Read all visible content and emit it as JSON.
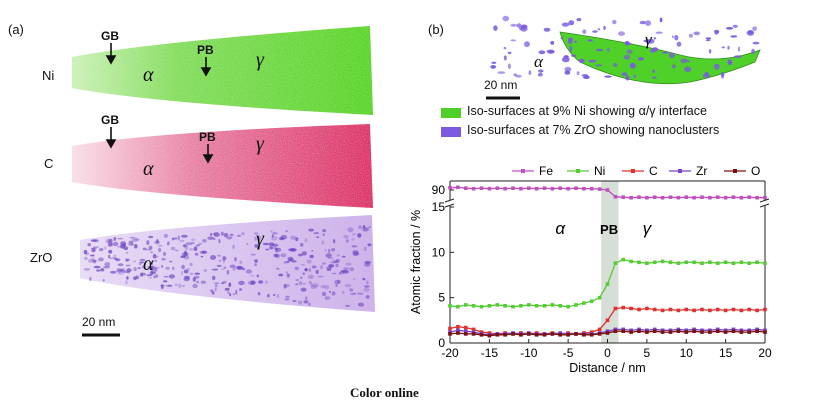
{
  "panel_a": {
    "label": "(a)",
    "rows": [
      {
        "element": "Ni",
        "color": "#59d62a",
        "markers": [
          {
            "text": "GB"
          },
          {
            "text": "PB"
          }
        ],
        "phases": [
          "α",
          "γ"
        ]
      },
      {
        "element": "C",
        "color": "#e0457a",
        "markers": [
          {
            "text": "GB"
          },
          {
            "text": "PB"
          }
        ],
        "phases": [
          "α",
          "γ"
        ]
      },
      {
        "element": "ZrO",
        "color": "#8a5fd0",
        "markers": [],
        "phases": [
          "α",
          "γ"
        ]
      }
    ],
    "scale_bar": "20 nm"
  },
  "panel_b": {
    "label": "(b)",
    "phases": [
      "α",
      "γ"
    ],
    "scale_bar": "20 nm",
    "legend": [
      {
        "text": "Iso-surfaces at 9% Ni showing α/γ interface",
        "color": "#4fcf2a"
      },
      {
        "text": "Iso-surfaces at 7% ZrO showing nanoclusters",
        "color": "#7a5be0"
      }
    ]
  },
  "chart_data": {
    "type": "line",
    "xlabel": "Distance / nm",
    "ylabel": "Atomic fraction / %",
    "xlim": [
      -20,
      20
    ],
    "x_ticks": [
      -20,
      -15,
      -10,
      -5,
      0,
      5,
      10,
      15,
      20
    ],
    "y_ticks_lower": [
      0,
      5,
      10,
      15
    ],
    "y_ticks_upper": [
      90
    ],
    "y_break": [
      15,
      88
    ],
    "legend_position": "top",
    "annotations": [
      {
        "text": "α",
        "x": -6,
        "y": 12
      },
      {
        "text": "PB",
        "x": 0.2,
        "y": 12
      },
      {
        "text": "γ",
        "x": 5,
        "y": 12
      }
    ],
    "shaded_region": [
      -0.8,
      1.4
    ],
    "x": [
      -20,
      -19,
      -18,
      -17,
      -16,
      -15,
      -14,
      -13,
      -12,
      -11,
      -10,
      -9,
      -8,
      -7,
      -6,
      -5,
      -4,
      -3,
      -2,
      -1,
      0,
      1,
      2,
      3,
      4,
      5,
      6,
      7,
      8,
      9,
      10,
      11,
      12,
      13,
      14,
      15,
      16,
      17,
      18,
      19,
      20
    ],
    "series": [
      {
        "name": "Fe",
        "color": "#c050c0",
        "values": [
          90.5,
          90.6,
          90.4,
          90.3,
          90.4,
          90.3,
          90.4,
          90.3,
          90.4,
          90.3,
          90.4,
          90.3,
          90.4,
          90.3,
          90.4,
          90.3,
          90.4,
          90.3,
          90.3,
          90.2,
          90.0,
          88.5,
          88.4,
          88.3,
          88.4,
          88.3,
          88.4,
          88.3,
          88.4,
          88.3,
          88.4,
          88.3,
          88.4,
          88.3,
          88.4,
          88.3,
          88.4,
          88.3,
          88.4,
          88.3,
          88.3
        ]
      },
      {
        "name": "Ni",
        "color": "#55cc33",
        "values": [
          4.1,
          4.0,
          4.2,
          4.1,
          4.0,
          4.1,
          4.2,
          4.1,
          4.0,
          4.1,
          4.2,
          4.1,
          4.1,
          4.2,
          4.1,
          4.0,
          4.2,
          4.4,
          4.6,
          5.0,
          6.5,
          8.8,
          9.2,
          9.0,
          8.9,
          8.8,
          8.9,
          9.0,
          8.9,
          8.8,
          8.9,
          8.9,
          8.8,
          8.9,
          8.8,
          8.9,
          8.8,
          8.9,
          8.8,
          8.9,
          8.8
        ]
      },
      {
        "name": "C",
        "color": "#e03030",
        "values": [
          1.6,
          1.8,
          1.7,
          1.5,
          1.2,
          1.1,
          1.0,
          1.1,
          1.0,
          1.1,
          1.0,
          1.1,
          1.0,
          1.1,
          1.0,
          1.1,
          1.0,
          1.1,
          1.2,
          1.5,
          2.5,
          3.8,
          3.9,
          3.8,
          3.7,
          3.8,
          3.7,
          3.6,
          3.7,
          3.6,
          3.7,
          3.6,
          3.7,
          3.6,
          3.7,
          3.6,
          3.7,
          3.6,
          3.7,
          3.6,
          3.7
        ]
      },
      {
        "name": "Zr",
        "color": "#7744cc",
        "values": [
          1.2,
          1.4,
          1.3,
          1.2,
          1.0,
          0.9,
          1.0,
          1.0,
          1.1,
          1.0,
          1.1,
          1.0,
          1.0,
          1.0,
          1.1,
          1.0,
          1.0,
          1.0,
          1.0,
          1.1,
          1.3,
          1.5,
          1.5,
          1.4,
          1.5,
          1.4,
          1.5,
          1.4,
          1.4,
          1.5,
          1.4,
          1.5,
          1.4,
          1.4,
          1.5,
          1.4,
          1.5,
          1.4,
          1.4,
          1.5,
          1.4
        ]
      },
      {
        "name": "O",
        "color": "#7a1010",
        "values": [
          1.0,
          1.1,
          1.0,
          1.0,
          0.9,
          0.8,
          0.9,
          0.9,
          1.0,
          0.9,
          1.0,
          0.9,
          0.9,
          1.0,
          0.9,
          0.9,
          1.0,
          0.9,
          0.9,
          1.0,
          1.1,
          1.3,
          1.3,
          1.2,
          1.3,
          1.2,
          1.3,
          1.2,
          1.2,
          1.3,
          1.2,
          1.3,
          1.2,
          1.2,
          1.3,
          1.2,
          1.3,
          1.2,
          1.2,
          1.3,
          1.2
        ]
      }
    ]
  },
  "caption": "Color online"
}
